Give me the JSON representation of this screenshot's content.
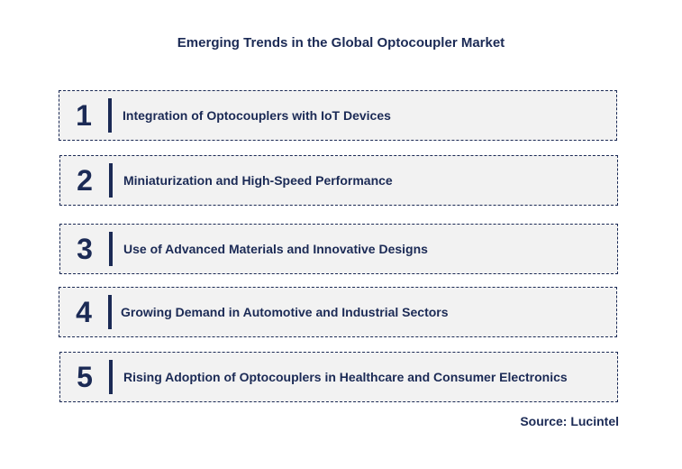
{
  "title": "Emerging Trends in the Global Optocoupler Market",
  "trends": [
    {
      "number": "1",
      "label": "Integration of Optocouplers with IoT Devices"
    },
    {
      "number": "2",
      "label": "Miniaturization and High-Speed Performance"
    },
    {
      "number": "3",
      "label": "Use of Advanced Materials and Innovative Designs"
    },
    {
      "number": "4",
      "label": "Growing Demand in Automotive and Industrial Sectors"
    },
    {
      "number": "5",
      "label": "Rising Adoption of Optocouplers in Healthcare and Consumer Electronics"
    }
  ],
  "source": "Source: Lucintel",
  "colors": {
    "accent": "#1b2a55",
    "box_background": "#f2f2f2"
  }
}
